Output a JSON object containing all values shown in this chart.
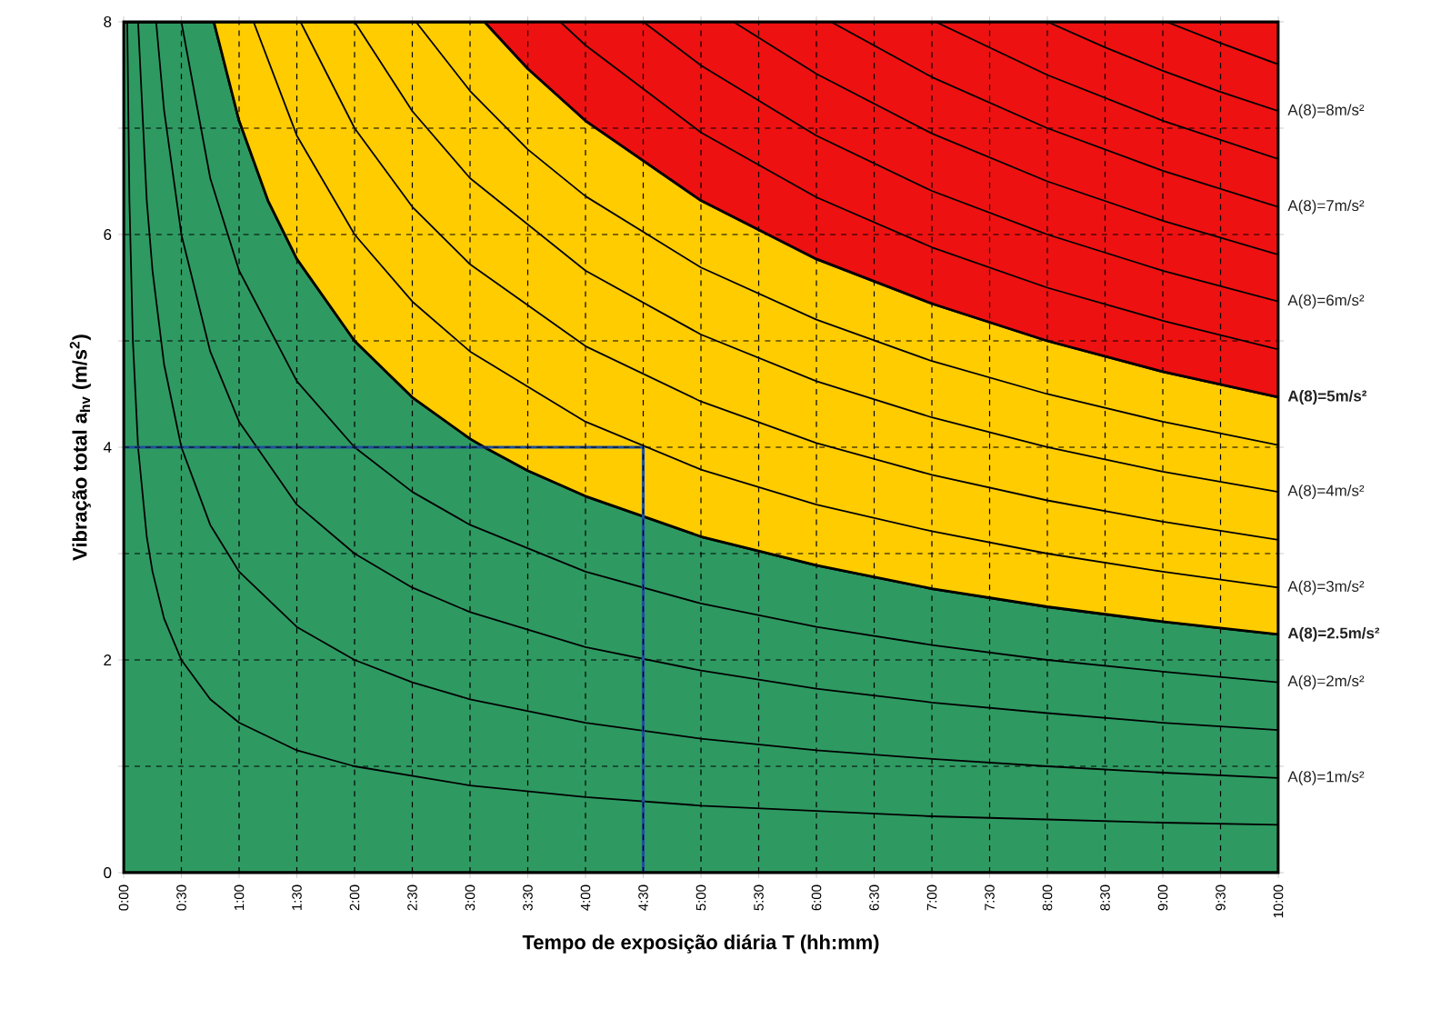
{
  "chart_data": {
    "type": "area",
    "xlabel": "Tempo de exposição diária T (hh:mm)",
    "ylabel": "Vibração total a$_{hv}$ (m/s$^{2}$)",
    "xlim": [
      0,
      10
    ],
    "ylim": [
      0,
      8
    ],
    "xticks": [
      {
        "value": 0,
        "label": "0:00"
      },
      {
        "value": 0.5,
        "label": "0:30"
      },
      {
        "value": 1,
        "label": "1:00"
      },
      {
        "value": 1.5,
        "label": "1:30"
      },
      {
        "value": 2,
        "label": "2:00"
      },
      {
        "value": 2.5,
        "label": "2:30"
      },
      {
        "value": 3,
        "label": "3:00"
      },
      {
        "value": 3.5,
        "label": "3:30"
      },
      {
        "value": 4,
        "label": "4:00"
      },
      {
        "value": 4.5,
        "label": "4:30"
      },
      {
        "value": 5,
        "label": "5:00"
      },
      {
        "value": 5.5,
        "label": "5:30"
      },
      {
        "value": 6,
        "label": "6:00"
      },
      {
        "value": 6.5,
        "label": "6:30"
      },
      {
        "value": 7,
        "label": "7:00"
      },
      {
        "value": 7.5,
        "label": "7:30"
      },
      {
        "value": 8,
        "label": "8:00"
      },
      {
        "value": 8.5,
        "label": "8:30"
      },
      {
        "value": 9,
        "label": "9:00"
      },
      {
        "value": 9.5,
        "label": "9:30"
      },
      {
        "value": 10,
        "label": "10:00"
      }
    ],
    "yticks": [
      0,
      {
        "value": 1,
        "label": null
      },
      2,
      {
        "value": 3,
        "label": null
      },
      4,
      {
        "value": 5,
        "label": null
      },
      6,
      {
        "value": 7,
        "label": null
      },
      8
    ],
    "grid": true,
    "stacked": true,
    "series": [
      {
        "color": "#2e9a62",
        "name": "A(8)=2.5m/s²",
        "x": [
          0,
          0.78125,
          1,
          1.25,
          1.5,
          2,
          2.5,
          3,
          3.125,
          3.5,
          4,
          5,
          6,
          7,
          8,
          9,
          10
        ],
        "values": [
          8,
          8,
          7.07,
          6.32,
          5.77,
          5,
          4.47,
          4.08,
          4,
          3.78,
          3.54,
          3.16,
          2.89,
          2.67,
          2.5,
          2.36,
          2.24
        ]
      },
      {
        "color": "#ffcc00",
        "name": "A(8)=5m/s²",
        "x": [
          0,
          0.78125,
          1,
          1.25,
          1.5,
          2,
          2.5,
          3,
          3.125,
          3.5,
          4,
          5,
          6,
          7,
          8,
          9,
          10
        ],
        "values": [
          0,
          0,
          0.93,
          1.68,
          2.23,
          3,
          3.53,
          3.92,
          4,
          3.78,
          3.53,
          3.16,
          2.88,
          2.68,
          2.5,
          2.35,
          2.23
        ]
      },
      {
        "color": "#ee1111",
        "x": [
          0,
          0.78125,
          1,
          1.25,
          1.5,
          2,
          2.5,
          3,
          3.125,
          3.5,
          4,
          5,
          6,
          7,
          8,
          9,
          10
        ],
        "values": [
          0,
          0,
          0,
          0,
          0,
          0,
          0,
          0,
          0,
          0.44,
          0.93,
          1.68,
          2.23,
          2.65,
          3,
          3.29,
          3.53
        ]
      },
      {
        "type": "line",
        "color": "#000000",
        "x": [
          0.03125,
          0.05,
          0.08,
          0.125,
          0.2,
          0.25,
          0.35,
          0.5,
          0.75,
          1,
          1.5,
          2,
          3,
          4,
          5,
          6,
          7,
          8,
          9,
          10
        ],
        "values": [
          8,
          6.32,
          5,
          4,
          3.16,
          2.83,
          2.39,
          2,
          1.63,
          1.41,
          1.15,
          1,
          0.82,
          0.71,
          0.63,
          0.58,
          0.53,
          0.5,
          0.47,
          0.45
        ]
      },
      {
        "type": "line",
        "color": "#000000",
        "name": "A(8)=1m/s²",
        "x": [
          0.125,
          0.2,
          0.25,
          0.35,
          0.5,
          0.75,
          1,
          1.5,
          2,
          2.5,
          3,
          4,
          5,
          6,
          7,
          8,
          9,
          10
        ],
        "values": [
          8,
          6.32,
          5.66,
          4.78,
          4,
          3.27,
          2.83,
          2.31,
          2,
          1.79,
          1.63,
          1.41,
          1.26,
          1.15,
          1.07,
          1,
          0.94,
          0.89
        ]
      },
      {
        "type": "line",
        "color": "#000000",
        "x": [
          0.28125,
          0.35,
          0.5,
          0.75,
          1,
          1.5,
          2,
          2.5,
          3,
          4,
          5,
          6,
          7,
          8,
          9,
          10
        ],
        "values": [
          8,
          7.17,
          6,
          4.9,
          4.24,
          3.46,
          3,
          2.68,
          2.45,
          2.12,
          1.9,
          1.73,
          1.6,
          1.5,
          1.41,
          1.34
        ]
      },
      {
        "type": "line",
        "color": "#000000",
        "name": "A(8)=2m/s²",
        "x": [
          0.5,
          0.75,
          1,
          1.5,
          2,
          2.5,
          3,
          4,
          5,
          6,
          7,
          8,
          9,
          10
        ],
        "values": [
          8,
          6.53,
          5.66,
          4.62,
          4,
          3.58,
          3.27,
          2.83,
          2.53,
          2.31,
          2.14,
          2,
          1.89,
          1.79
        ]
      },
      {
        "type": "line",
        "color": "#000000",
        "name": "A(8)=3m/s²",
        "x": [
          1.125,
          1.5,
          2,
          2.5,
          3,
          4,
          5,
          6,
          7,
          8,
          9,
          10
        ],
        "values": [
          8,
          6.93,
          6,
          5.37,
          4.9,
          4.24,
          3.79,
          3.46,
          3.21,
          3,
          2.83,
          2.68
        ]
      },
      {
        "type": "line",
        "color": "#000000",
        "x": [
          1.53125,
          2,
          2.5,
          3,
          4,
          5,
          6,
          7,
          8,
          9,
          10
        ],
        "values": [
          8,
          7,
          6.26,
          5.72,
          4.95,
          4.43,
          4.04,
          3.74,
          3.5,
          3.3,
          3.13
        ]
      },
      {
        "type": "line",
        "color": "#000000",
        "name": "A(8)=4m/s²",
        "x": [
          2,
          2.5,
          3,
          4,
          5,
          6,
          7,
          8,
          9,
          10
        ],
        "values": [
          8,
          7.16,
          6.53,
          5.66,
          5.06,
          4.62,
          4.28,
          4,
          3.77,
          3.58
        ]
      },
      {
        "type": "line",
        "color": "#000000",
        "x": [
          2.53125,
          3,
          3.5,
          4,
          5,
          6,
          7,
          8,
          9,
          10
        ],
        "values": [
          8,
          7.35,
          6.8,
          6.36,
          5.69,
          5.2,
          4.81,
          4.5,
          4.24,
          4.02
        ]
      },
      {
        "type": "line",
        "color": "#000000",
        "x": [
          3.78125,
          4,
          5,
          6,
          7,
          8,
          9,
          10
        ],
        "values": [
          8,
          7.78,
          6.96,
          6.35,
          5.88,
          5.5,
          5.19,
          4.92
        ]
      },
      {
        "type": "line",
        "color": "#000000",
        "name": "A(8)=6m/s²",
        "x": [
          4.5,
          5,
          6,
          7,
          8,
          9,
          10
        ],
        "values": [
          8,
          7.59,
          6.93,
          6.41,
          6,
          5.66,
          5.37
        ]
      },
      {
        "type": "line",
        "color": "#000000",
        "x": [
          5.28125,
          6,
          7,
          8,
          9,
          10
        ],
        "values": [
          8,
          7.51,
          6.95,
          6.5,
          6.13,
          5.81
        ]
      },
      {
        "type": "line",
        "color": "#000000",
        "name": "A(8)=7m/s²",
        "x": [
          6.125,
          7,
          8,
          9,
          10
        ],
        "values": [
          8,
          7.48,
          7,
          6.6,
          6.26
        ]
      },
      {
        "type": "line",
        "color": "#000000",
        "x": [
          7.03125,
          8,
          9,
          10
        ],
        "values": [
          8,
          7.5,
          7.07,
          6.71
        ]
      },
      {
        "type": "line",
        "color": "#000000",
        "name": "A(8)=8m/s²",
        "x": [
          8,
          8.5,
          9,
          9.5,
          10
        ],
        "values": [
          8,
          7.76,
          7.54,
          7.34,
          7.16
        ]
      },
      {
        "type": "line",
        "color": "#000000",
        "x": [
          9.03125,
          9.5,
          10
        ],
        "values": [
          8,
          7.8,
          7.6
        ]
      },
      {
        "type": "line",
        "color": "#1f4e9a",
        "x": [
          0,
          4.5,
          4.5
        ],
        "values": [
          4,
          4,
          0
        ]
      }
    ]
  }
}
